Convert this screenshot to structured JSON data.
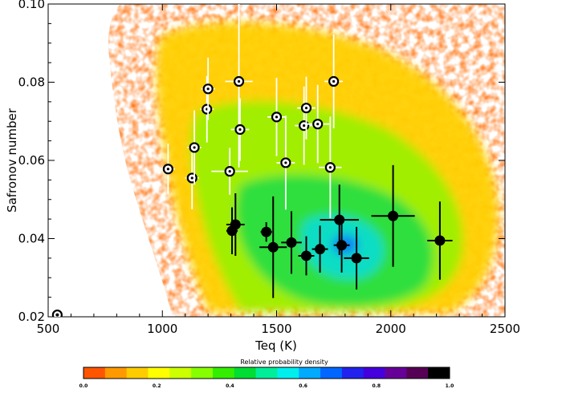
{
  "chart_data": {
    "type": "scatter",
    "title": "",
    "xlabel": "Teq (K)",
    "ylabel": "Safronov number",
    "xlim": [
      500,
      2500
    ],
    "ylim": [
      0.02,
      0.1
    ],
    "x_ticks": [
      {
        "value": 500,
        "label": "500"
      },
      {
        "value": 1000,
        "label": "1000"
      },
      {
        "value": 1500,
        "label": "1500"
      },
      {
        "value": 2000,
        "label": "2000"
      },
      {
        "value": 2500,
        "label": "2500"
      }
    ],
    "y_ticks": [
      {
        "value": 0.02,
        "label": "0.02"
      },
      {
        "value": 0.04,
        "label": "0.04"
      },
      {
        "value": 0.06,
        "label": "0.06"
      },
      {
        "value": 0.08,
        "label": "0.08"
      },
      {
        "value": 0.1,
        "label": "0.10"
      }
    ],
    "background": "2D relative probability density map (heatmap) of simulated planets",
    "series": [
      {
        "name": "open-circle planets",
        "marker": "open",
        "points": [
          {
            "x": 1025,
            "y": 0.0578,
            "xerr": 30,
            "yerr": 0.0065
          },
          {
            "x": 1130,
            "y": 0.0555,
            "xerr": 30,
            "yerr": 0.008
          },
          {
            "x": 1140,
            "y": 0.0633,
            "xerr": 30,
            "yerr": 0.0095
          },
          {
            "x": 1195,
            "y": 0.0731,
            "xerr": 30,
            "yerr": 0.0085
          },
          {
            "x": 1200,
            "y": 0.0783,
            "xerr": 30,
            "yerr": 0.008
          },
          {
            "x": 1295,
            "y": 0.0572,
            "xerr": 80,
            "yerr": 0.006
          },
          {
            "x": 1335,
            "y": 0.0802,
            "xerr": 60,
            "yerr": 0.022
          },
          {
            "x": 1340,
            "y": 0.0679,
            "xerr": 40,
            "yerr": 0.008
          },
          {
            "x": 1500,
            "y": 0.0711,
            "xerr": 40,
            "yerr": 0.01
          },
          {
            "x": 1540,
            "y": 0.0594,
            "xerr": 40,
            "yerr": 0.012
          },
          {
            "x": 1620,
            "y": 0.0689,
            "xerr": 40,
            "yerr": 0.01
          },
          {
            "x": 1630,
            "y": 0.0734,
            "xerr": 40,
            "yerr": 0.008
          },
          {
            "x": 1680,
            "y": 0.0693,
            "xerr": 50,
            "yerr": 0.01
          },
          {
            "x": 1735,
            "y": 0.0582,
            "xerr": 50,
            "yerr": 0.013
          },
          {
            "x": 1750,
            "y": 0.0802,
            "xerr": 40,
            "yerr": 0.012
          }
        ]
      },
      {
        "name": "filled planets",
        "marker": "filled",
        "points": [
          {
            "x": 1305,
            "y": 0.042,
            "xerr": 25,
            "yerr": 0.006
          },
          {
            "x": 1320,
            "y": 0.0436,
            "xerr": 40,
            "yerr": 0.008
          },
          {
            "x": 1455,
            "y": 0.0417,
            "xerr": 25,
            "yerr": 0.0025
          },
          {
            "x": 1485,
            "y": 0.0378,
            "xerr": 60,
            "yerr": 0.013
          },
          {
            "x": 1565,
            "y": 0.039,
            "xerr": 45,
            "yerr": 0.008
          },
          {
            "x": 1630,
            "y": 0.0356,
            "xerr": 35,
            "yerr": 0.005
          },
          {
            "x": 1690,
            "y": 0.0373,
            "xerr": 35,
            "yerr": 0.006
          },
          {
            "x": 1775,
            "y": 0.0448,
            "xerr": 85,
            "yerr": 0.009
          },
          {
            "x": 1785,
            "y": 0.0383,
            "xerr": 35,
            "yerr": 0.007
          },
          {
            "x": 1850,
            "y": 0.035,
            "xerr": 55,
            "yerr": 0.008
          },
          {
            "x": 2010,
            "y": 0.0458,
            "xerr": 95,
            "yerr": 0.013
          },
          {
            "x": 2215,
            "y": 0.0395,
            "xerr": 55,
            "yerr": 0.01
          }
        ]
      },
      {
        "name": "solar-system reference",
        "marker": "sun",
        "points": [
          {
            "x": 540,
            "y": 0.0205,
            "xerr": 0,
            "yerr": 0
          }
        ]
      }
    ],
    "colorbar": {
      "title": "Relative probability density",
      "range": [
        0.0,
        1.0
      ],
      "tick_labels": [
        {
          "value": 0.0,
          "label": "0.0"
        },
        {
          "value": 0.2,
          "label": "0.2"
        },
        {
          "value": 0.4,
          "label": "0.4"
        },
        {
          "value": 0.6,
          "label": "0.6"
        },
        {
          "value": 0.8,
          "label": "0.8"
        },
        {
          "value": 1.0,
          "label": "1.0"
        }
      ],
      "colors": [
        "#ff5500",
        "#ff9900",
        "#ffcc00",
        "#ffff00",
        "#ccff00",
        "#88ff00",
        "#33ee00",
        "#00dd33",
        "#00ee99",
        "#00eeee",
        "#00aaff",
        "#0066ff",
        "#2222ee",
        "#4400dd",
        "#660099",
        "#550055",
        "#000000"
      ]
    },
    "colors": {
      "axis": "#000000",
      "open_errorbar": "#ffffff",
      "filled_marker": "#000000"
    }
  }
}
